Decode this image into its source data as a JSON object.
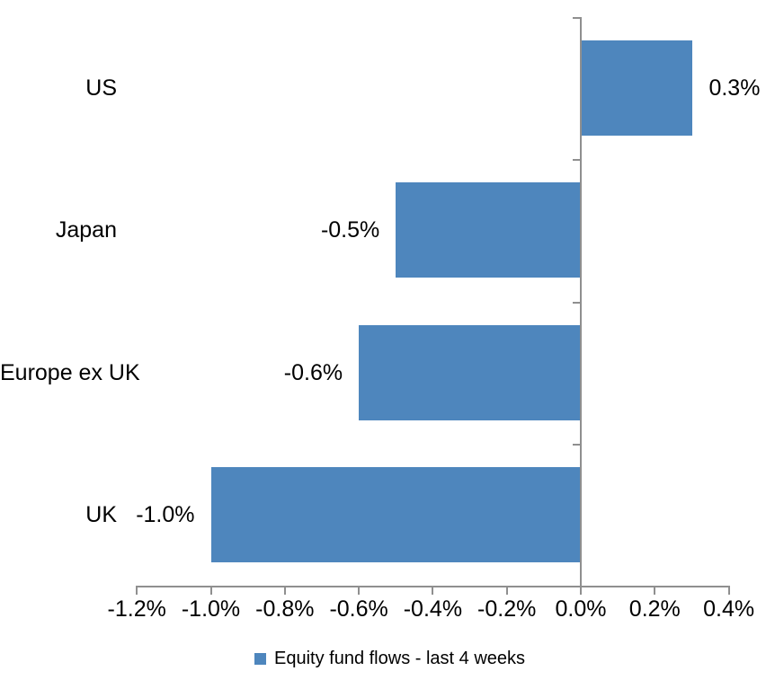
{
  "chart_data": {
    "type": "bar",
    "orientation": "horizontal",
    "categories": [
      "US",
      "Japan",
      "Europe ex UK",
      "UK"
    ],
    "values": [
      0.3,
      -0.5,
      -0.6,
      -1.0
    ],
    "data_labels": [
      "0.3%",
      "-0.5%",
      "-0.6%",
      "-1.0%"
    ],
    "x_ticks": [
      "-1.2%",
      "-1.0%",
      "-0.8%",
      "-0.6%",
      "-0.4%",
      "-0.2%",
      "0.0%",
      "0.2%",
      "0.4%"
    ],
    "x_tick_values": [
      -1.2,
      -1.0,
      -0.8,
      -0.6,
      -0.4,
      -0.2,
      0.0,
      0.2,
      0.4
    ],
    "xlim": [
      -1.2,
      0.4
    ],
    "grid": false,
    "legend_position": "bottom",
    "legend": [
      {
        "label": "Equity fund flows - last 4 weeks",
        "color": "#4E86BD"
      }
    ],
    "bar_color": "#4E86BD",
    "axis_color": "#8F8F8F",
    "text_color": "#000000"
  }
}
